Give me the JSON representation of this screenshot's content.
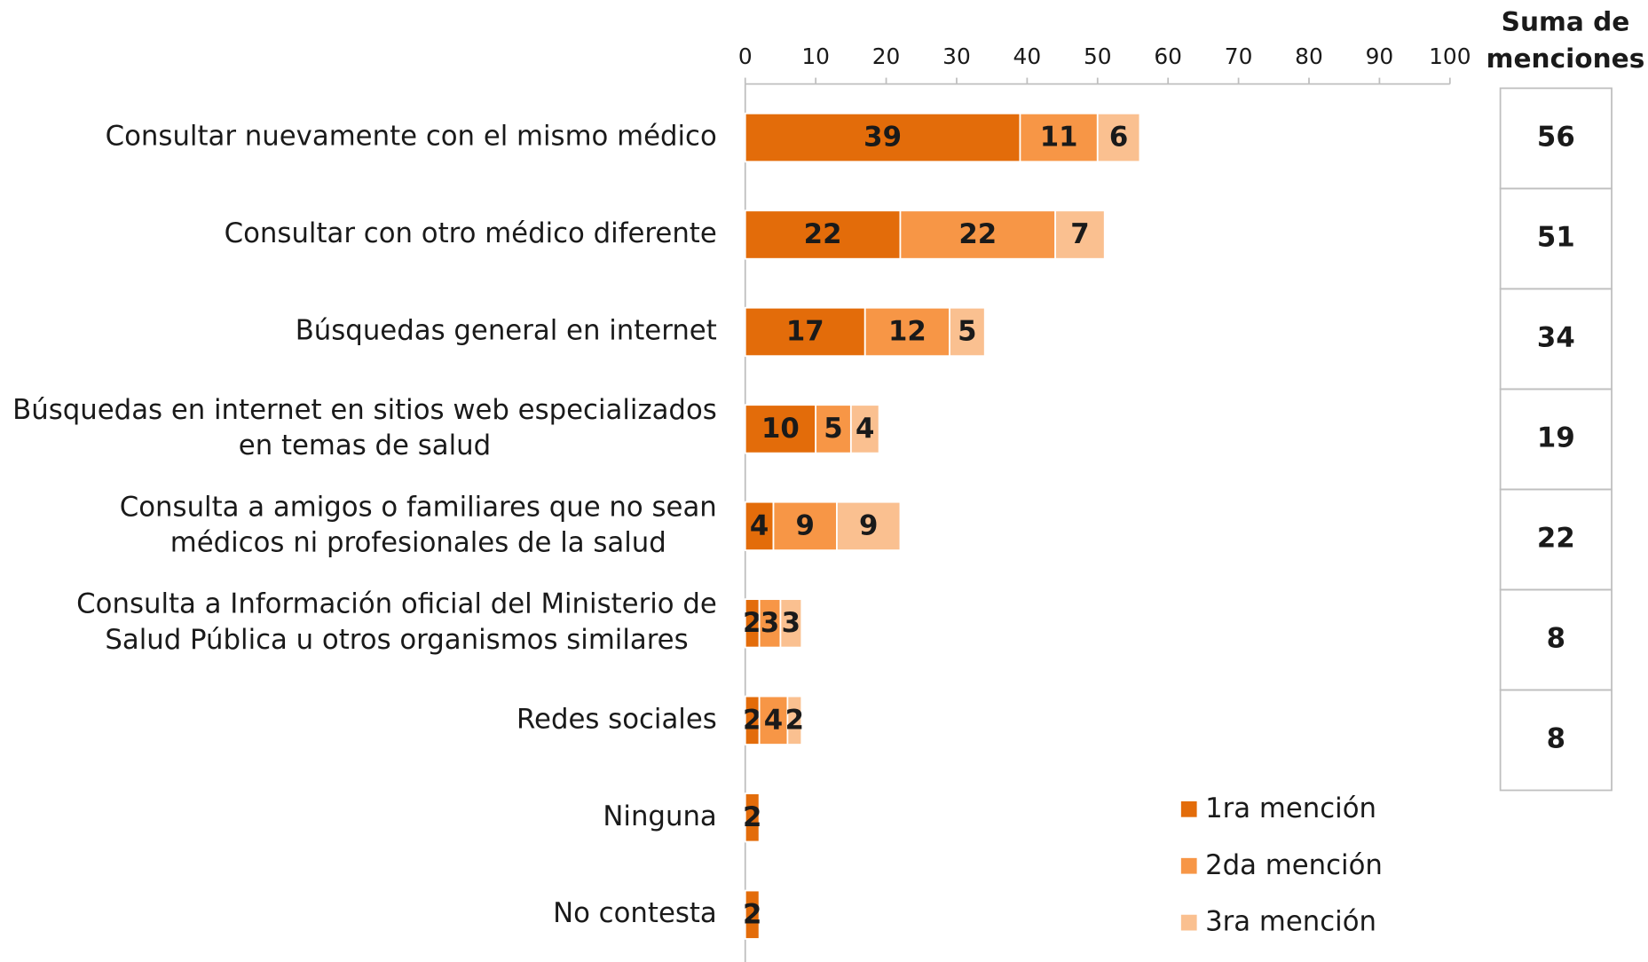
{
  "chart_data": {
    "type": "bar",
    "orientation": "horizontal",
    "stacked": true,
    "categories": [
      [
        "Consultar nuevamente con el mismo médico"
      ],
      [
        "Consultar con otro médico diferente"
      ],
      [
        "Búsquedas general en internet"
      ],
      [
        "Búsquedas en internet en sitios web especializados",
        "en temas de salud"
      ],
      [
        "Consulta a amigos o familiares que no sean",
        "médicos  ni profesionales de la salud"
      ],
      [
        "Consulta a Información oficial del Ministerio de",
        "Salud Pública u otros organismos similares"
      ],
      [
        "Redes sociales"
      ],
      [
        "Ninguna"
      ],
      [
        "No contesta"
      ]
    ],
    "series": [
      {
        "name": "1ra mención",
        "color": "#e36c0a",
        "label_color": "#ffffff",
        "values": [
          39,
          22,
          17,
          10,
          4,
          2,
          2,
          2,
          2
        ]
      },
      {
        "name": "2da mención",
        "color": "#f79646",
        "label_color": "#ffffff",
        "values": [
          11,
          22,
          12,
          5,
          9,
          3,
          4,
          null,
          null
        ]
      },
      {
        "name": "3ra mención",
        "color": "#fac090",
        "label_color": "#262626",
        "values": [
          6,
          7,
          5,
          4,
          9,
          3,
          2,
          null,
          null
        ]
      }
    ],
    "xlim": [
      0,
      100
    ],
    "xticks": [
      0,
      10,
      20,
      30,
      40,
      50,
      60,
      70,
      80,
      90,
      100
    ],
    "sum_header": [
      "Suma de",
      "menciones"
    ],
    "sums": [
      56,
      51,
      34,
      19,
      22,
      8,
      8
    ]
  }
}
